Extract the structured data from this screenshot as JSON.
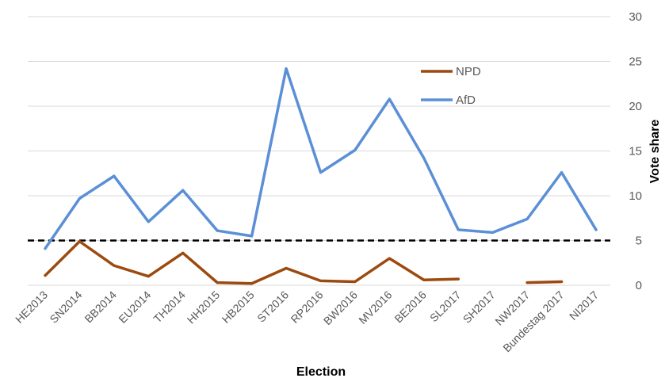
{
  "chart_data": {
    "type": "line",
    "title": "",
    "xlabel": "Election",
    "ylabel": "Vote share",
    "ylim": [
      0,
      30
    ],
    "yticks": [
      0,
      5,
      10,
      15,
      20,
      25,
      30
    ],
    "grid": true,
    "legend_position": "top-center",
    "categories": [
      "HE2013",
      "SN2014",
      "BB2014",
      "EU2014",
      "TH2014",
      "HH2015",
      "HB2015",
      "ST2016",
      "RP2016",
      "BW2016",
      "MV2016",
      "BE2016",
      "SL2017",
      "SH2017",
      "NW2017",
      "Bundestag 2017",
      "NI2017"
    ],
    "series": [
      {
        "name": "NPD",
        "color": "#9C4A0F",
        "values": [
          1.1,
          4.9,
          2.2,
          1.0,
          3.6,
          0.3,
          0.2,
          1.9,
          0.5,
          0.4,
          3.0,
          0.6,
          0.7,
          null,
          0.3,
          0.4,
          null
        ]
      },
      {
        "name": "AfD",
        "color": "#5B8FD6",
        "values": [
          4.1,
          9.7,
          12.2,
          7.1,
          10.6,
          6.1,
          5.5,
          24.2,
          12.6,
          15.1,
          20.8,
          14.2,
          6.2,
          5.9,
          7.4,
          12.6,
          6.2
        ]
      }
    ],
    "threshold": {
      "value": 5,
      "style": "dashed",
      "color": "#000000"
    }
  }
}
